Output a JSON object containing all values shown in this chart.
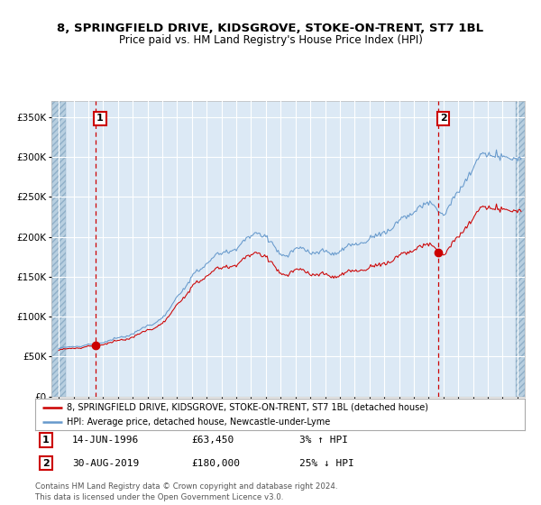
{
  "title": "8, SPRINGFIELD DRIVE, KIDSGROVE, STOKE-ON-TRENT, ST7 1BL",
  "subtitle": "Price paid vs. HM Land Registry's House Price Index (HPI)",
  "legend_line1": "8, SPRINGFIELD DRIVE, KIDSGROVE, STOKE-ON-TRENT, ST7 1BL (detached house)",
  "legend_line2": "HPI: Average price, detached house, Newcastle-under-Lyme",
  "annotation1_date": "14-JUN-1996",
  "annotation1_price": 63450,
  "annotation1_hpi": "3% ↑ HPI",
  "annotation2_date": "30-AUG-2019",
  "annotation2_price": 180000,
  "annotation2_hpi": "25% ↓ HPI",
  "footer": "Contains HM Land Registry data © Crown copyright and database right 2024.\nThis data is licensed under the Open Government Licence v3.0.",
  "red_color": "#cc0000",
  "blue_color": "#6699cc",
  "bg_color": "#dce9f5",
  "hatch_color": "#b8cfe0",
  "grid_color": "#ffffff",
  "ylim": [
    0,
    370000
  ],
  "yticks": [
    0,
    50000,
    100000,
    150000,
    200000,
    250000,
    300000,
    350000
  ],
  "xlim_start": 1993.5,
  "xlim_end": 2025.5,
  "sale1_t": 1996.458,
  "sale1_price": 63450,
  "sale2_t": 2019.667,
  "sale2_price": 180000,
  "hatch_left_end": 1994.5,
  "hatch_right_start": 2024.917
}
